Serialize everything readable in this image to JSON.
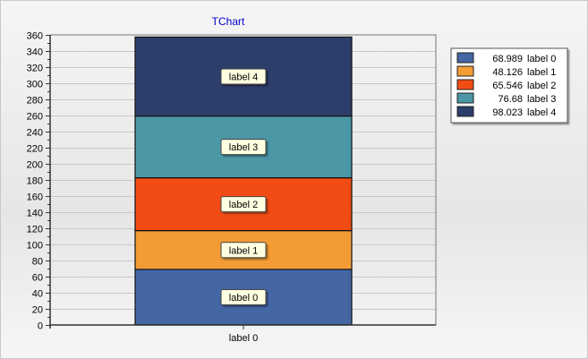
{
  "chart_data": {
    "type": "bar",
    "stacked": true,
    "title": "TChart",
    "categories": [
      "label 0"
    ],
    "ylim": [
      0,
      360
    ],
    "ytick_step": 20,
    "grid": true,
    "legend_position": "right",
    "series": [
      {
        "label": "label 0",
        "value_text": "68.989",
        "values": [
          68.989
        ],
        "color": "#4466a3"
      },
      {
        "label": "label 1",
        "value_text": "48.126",
        "values": [
          48.126
        ],
        "color": "#f39c36"
      },
      {
        "label": "label 2",
        "value_text": "65.546",
        "values": [
          65.546
        ],
        "color": "#f24c14"
      },
      {
        "label": "label 3",
        "value_text": "76.68",
        "values": [
          76.68
        ],
        "color": "#4b97a6"
      },
      {
        "label": "label 4",
        "value_text": "98.023",
        "values": [
          98.023
        ],
        "color": "#2c3e69"
      }
    ]
  }
}
